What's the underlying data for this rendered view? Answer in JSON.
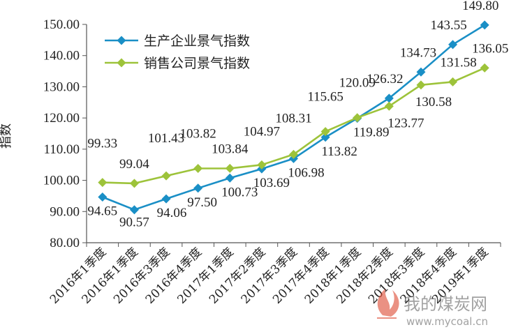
{
  "chart_data": {
    "type": "line",
    "ylabel": "指数",
    "xlabel": "",
    "ylim": [
      80,
      150
    ],
    "yticks": [
      "80.00",
      "90.00",
      "100.00",
      "110.00",
      "120.00",
      "130.00",
      "140.00",
      "150.00"
    ],
    "categories": [
      "2016年1季度",
      "2016年1季度",
      "2016年3季度",
      "2016年4季度",
      "2017年1季度",
      "2017年2季度",
      "2017年3季度",
      "2017年4季度",
      "2018年1季度",
      "2018年2季度",
      "2018年3季度",
      "2018年4季度",
      "2019年1季度"
    ],
    "legend_position": "top-left",
    "grid": false,
    "series": [
      {
        "name": "生产企业景气指数",
        "color": "#1a8fc6",
        "marker": "diamond",
        "values": [
          94.65,
          90.57,
          94.06,
          97.5,
          100.73,
          103.69,
          106.98,
          113.82,
          119.89,
          126.32,
          134.73,
          143.55,
          149.8
        ],
        "labels": [
          "94.65",
          "90.57",
          "94.06",
          "97.50",
          "100.73",
          "103.69",
          "106.98",
          "113.82",
          "119.89",
          "126.32",
          "134.73",
          "143.55",
          "149.80"
        ]
      },
      {
        "name": "销售公司景气指数",
        "color": "#9dc33a",
        "marker": "diamond",
        "values": [
          99.33,
          99.04,
          101.43,
          103.82,
          103.84,
          104.97,
          108.31,
          115.65,
          120.09,
          123.77,
          130.58,
          131.58,
          136.05
        ],
        "labels": [
          "99.33",
          "99.04",
          "101.43",
          "103.82",
          "103.84",
          "104.97",
          "108.31",
          "115.65",
          "120.09",
          "123.77",
          "130.58",
          "131.58",
          "136.05"
        ]
      }
    ]
  },
  "watermark": {
    "name": "我的煤炭网",
    "url": "www.mycoal.cn",
    "flame_color": "#d9381e"
  }
}
